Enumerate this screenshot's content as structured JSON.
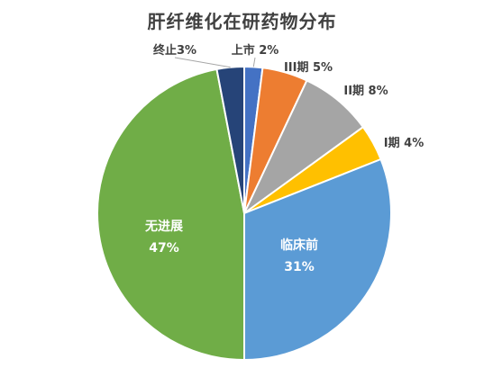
{
  "chart_data": {
    "type": "pie",
    "title": "肝纤维化在研药物分布",
    "slices": [
      {
        "label": "上市 2%",
        "name": "上市",
        "value": 2,
        "color": "#4472C4",
        "placement": "outside"
      },
      {
        "label": "III期 5%",
        "name": "III期",
        "value": 5,
        "color": "#ED7D31",
        "placement": "outside"
      },
      {
        "label": "II期 8%",
        "name": "II期",
        "value": 8,
        "color": "#A5A5A5",
        "placement": "outside"
      },
      {
        "label": "I期 4%",
        "name": "I期",
        "value": 4,
        "color": "#FFC000",
        "placement": "outside"
      },
      {
        "label": "临床前",
        "pct": "31%",
        "name": "临床前",
        "value": 31,
        "color": "#5B9BD5",
        "placement": "inside"
      },
      {
        "label": "无进展",
        "pct": "47%",
        "name": "无进展",
        "value": 47,
        "color": "#70AD47",
        "placement": "inside"
      },
      {
        "label": "终止3%",
        "name": "终止",
        "value": 3,
        "color": "#264478",
        "placement": "outside"
      }
    ]
  }
}
